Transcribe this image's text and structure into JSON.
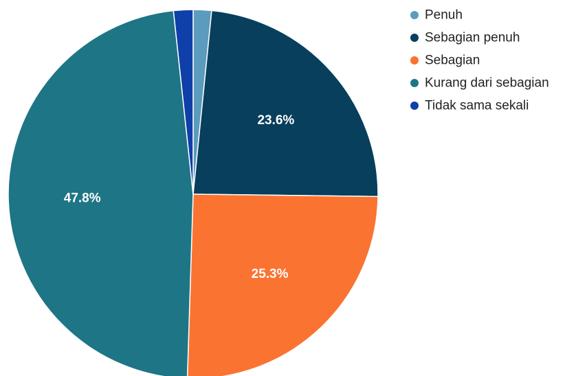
{
  "chart_data": {
    "type": "pie",
    "title": "",
    "legend_position": "right",
    "slices": [
      {
        "label": "Penuh",
        "value": 1.6,
        "display": "",
        "color": "#5b9bbd"
      },
      {
        "label": "Sebagian penuh",
        "value": 23.6,
        "display": "23.6%",
        "color": "#073f5c"
      },
      {
        "label": "Sebagian",
        "value": 25.3,
        "display": "25.3%",
        "color": "#fb7330"
      },
      {
        "label": "Kurang dari sebagian",
        "value": 47.8,
        "display": "47.8%",
        "color": "#1e7585"
      },
      {
        "label": "Tidak sama sekali",
        "value": 1.7,
        "display": "",
        "color": "#0f3fa8"
      }
    ]
  }
}
